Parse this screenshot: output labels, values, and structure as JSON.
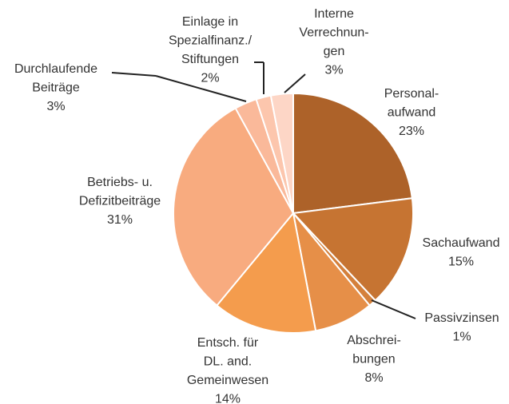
{
  "chart_data": {
    "type": "pie",
    "categories": [
      "Personal-\naufwand",
      "Sachaufwand",
      "Passivzinsen",
      "Abschrei-\nbungen",
      "Entsch. für\nDL. and.\nGemeinwesen",
      "Betriebs- u.\nDefizitbeiträge",
      "Durchlaufende\nBeiträge",
      "Einlage in\nSpezialfinanz./\nStiftungen",
      "Interne\nVerrechnun-\ngen"
    ],
    "values": [
      23,
      15,
      1,
      8,
      14,
      31,
      3,
      2,
      3
    ],
    "value_labels": [
      "23%",
      "15%",
      "1%",
      "8%",
      "14%",
      "31%",
      "3%",
      "2%",
      "3%"
    ],
    "colors": [
      "#ad6229",
      "#c67432",
      "#d4803b",
      "#e68f48",
      "#f49c4d",
      "#f8ab7f",
      "#fab99a",
      "#fcc6ad",
      "#fdd6c6"
    ]
  }
}
